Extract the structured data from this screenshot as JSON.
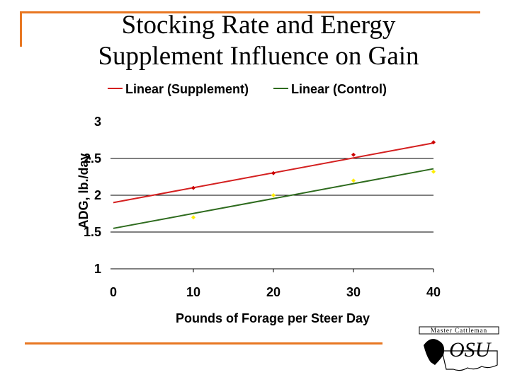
{
  "slide": {
    "title_line1": "Stocking Rate and Energy",
    "title_line2": "Supplement Influence on Gain",
    "accent_color": "#e87722"
  },
  "logo": {
    "top_text": "Master Cattleman",
    "mark_text": "OSU"
  },
  "chart_data": {
    "type": "scatter",
    "title": "Stocking Rate and Energy Supplement Influence on Gain",
    "xlabel": "Pounds of Forage per Steer Day",
    "ylabel": "ADG, lb./day",
    "xlim": [
      0,
      40
    ],
    "ylim": [
      1,
      3
    ],
    "xticks": [
      "0",
      "10",
      "20",
      "30",
      "40"
    ],
    "yticks": [
      "1",
      "1.5",
      "2",
      "2.5",
      "3"
    ],
    "ytick_values": [
      1,
      1.5,
      2,
      2.5,
      3
    ],
    "xtick_values": [
      0,
      10,
      20,
      30,
      40
    ],
    "grid": "horizontal",
    "legend_position": "top",
    "series": [
      {
        "name": "Supplement",
        "color": "#cc0000",
        "x": [
          10,
          20,
          30,
          40
        ],
        "y": [
          2.1,
          2.3,
          2.55,
          2.72
        ]
      },
      {
        "name": "Control",
        "color": "#ffee00",
        "x": [
          10,
          20,
          30,
          40
        ],
        "y": [
          1.7,
          2.0,
          2.2,
          2.32
        ]
      }
    ],
    "trendlines": [
      {
        "name": "Linear (Supplement)",
        "color": "#d42020",
        "x": [
          0,
          40
        ],
        "y": [
          1.9,
          2.71
        ]
      },
      {
        "name": "Linear (Control)",
        "color": "#2e6b1e",
        "x": [
          0,
          40
        ],
        "y": [
          1.55,
          2.36
        ]
      }
    ]
  }
}
